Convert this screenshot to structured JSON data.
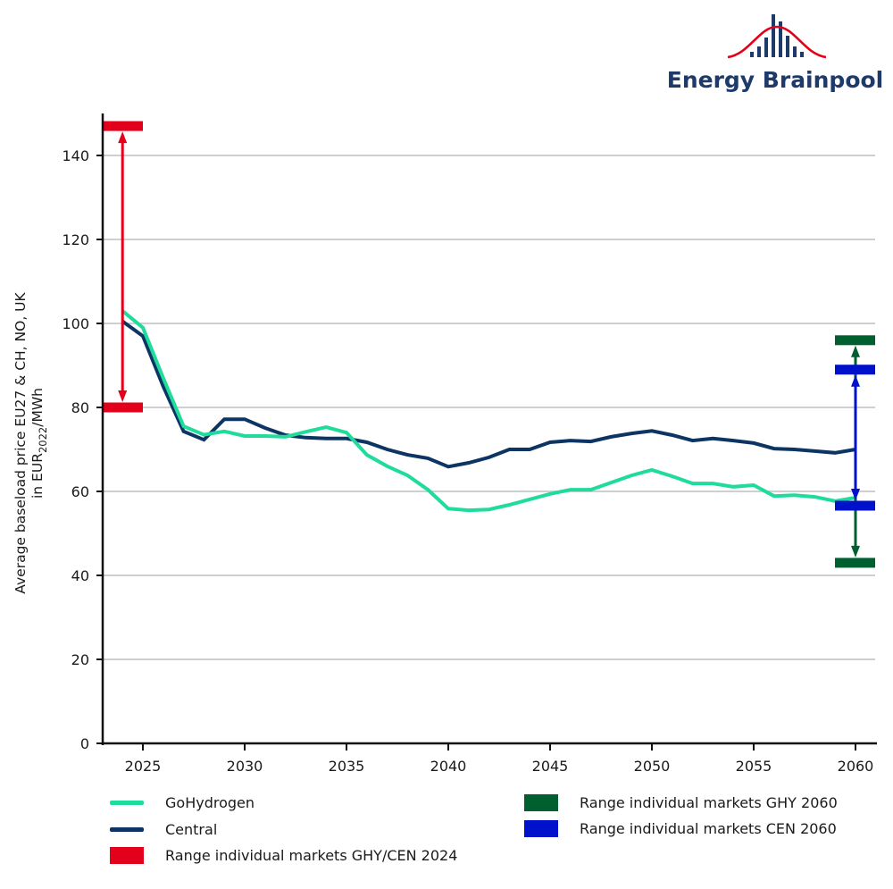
{
  "logo": {
    "text": "Energy Brainpool",
    "colors": {
      "text": "#1d3a6b",
      "curve": "#e2001a",
      "bars": "#1d3a6b"
    }
  },
  "chart_data": {
    "type": "line",
    "title": "",
    "xlabel": "",
    "ylabel_line1": "Average baseload price EU27 & CH, NO, UK",
    "ylabel_line2_prefix": "in EUR",
    "ylabel_line2_sub": "2022",
    "ylabel_line2_suffix": "/MWh",
    "xlim": [
      2023,
      2061
    ],
    "ylim": [
      0,
      150
    ],
    "x_ticks": [
      2025,
      2030,
      2035,
      2040,
      2045,
      2050,
      2055,
      2060
    ],
    "x_tick_labels": [
      "2025",
      "2030",
      "2035",
      "2040",
      "2045",
      "2050",
      "2055",
      "2060"
    ],
    "y_ticks": [
      0,
      20,
      40,
      60,
      80,
      100,
      120,
      140
    ],
    "y_tick_labels": [
      "0",
      "20",
      "40",
      "60",
      "80",
      "100",
      "120",
      "140"
    ],
    "grid": "horizontal",
    "legend_position": "bottom",
    "x": [
      2024,
      2025,
      2026,
      2027,
      2028,
      2029,
      2030,
      2031,
      2032,
      2033,
      2034,
      2035,
      2036,
      2037,
      2038,
      2039,
      2040,
      2041,
      2042,
      2043,
      2044,
      2045,
      2046,
      2047,
      2048,
      2049,
      2050,
      2051,
      2052,
      2053,
      2054,
      2055,
      2056,
      2057,
      2058,
      2059,
      2060
    ],
    "series": [
      {
        "name": "GoHydrogen",
        "color": "#1fdc9a",
        "values": [
          103,
          99,
          87,
          75.5,
          73.5,
          74.3,
          73.2,
          73.2,
          73.0,
          74.2,
          75.3,
          74.0,
          68.7,
          66.0,
          63.8,
          60.4,
          55.9,
          55.5,
          55.7,
          56.8,
          58.1,
          59.4,
          60.4,
          60.4,
          62.1,
          63.8,
          65.1,
          63.6,
          61.9,
          61.9,
          61.1,
          61.5,
          58.9,
          59.1,
          58.7,
          57.7,
          58.5
        ]
      },
      {
        "name": "Central",
        "color": "#0d3564",
        "values": [
          100.5,
          97,
          85,
          74.3,
          72.3,
          77.2,
          77.2,
          75.1,
          73.4,
          72.8,
          72.6,
          72.6,
          71.7,
          70.0,
          68.7,
          67.9,
          65.9,
          66.8,
          68.1,
          70.0,
          70.0,
          71.7,
          72.1,
          71.9,
          73.0,
          73.8,
          74.4,
          73.4,
          72.1,
          72.6,
          72.1,
          71.5,
          70.2,
          70.0,
          69.6,
          69.2,
          70.0
        ]
      }
    ],
    "ranges": [
      {
        "name": "Range individual markets GHY/CEN 2024",
        "year": 2024,
        "low": 80,
        "high": 147,
        "color": "#e2001a",
        "bar_side": "left"
      },
      {
        "name": "Range individual markets GHY 2060",
        "year": 2060,
        "low": 43,
        "high": 96,
        "color": "#005f2f",
        "bar_side": "center"
      },
      {
        "name": "Range individual markets CEN 2060",
        "year": 2060,
        "low": 56.6,
        "high": 89,
        "color": "#0011cc",
        "bar_side": "center"
      }
    ]
  },
  "legend": {
    "items": [
      {
        "label": "GoHydrogen",
        "kind": "line",
        "color": "#1fdc9a"
      },
      {
        "label": "Central",
        "kind": "line",
        "color": "#0d3564"
      },
      {
        "label": "Range individual markets GHY/CEN 2024",
        "kind": "box",
        "color": "#e2001a"
      },
      {
        "label": "Range individual markets GHY 2060",
        "kind": "box",
        "color": "#005f2f"
      },
      {
        "label": "Range individual markets CEN 2060",
        "kind": "box",
        "color": "#0011cc"
      }
    ]
  }
}
